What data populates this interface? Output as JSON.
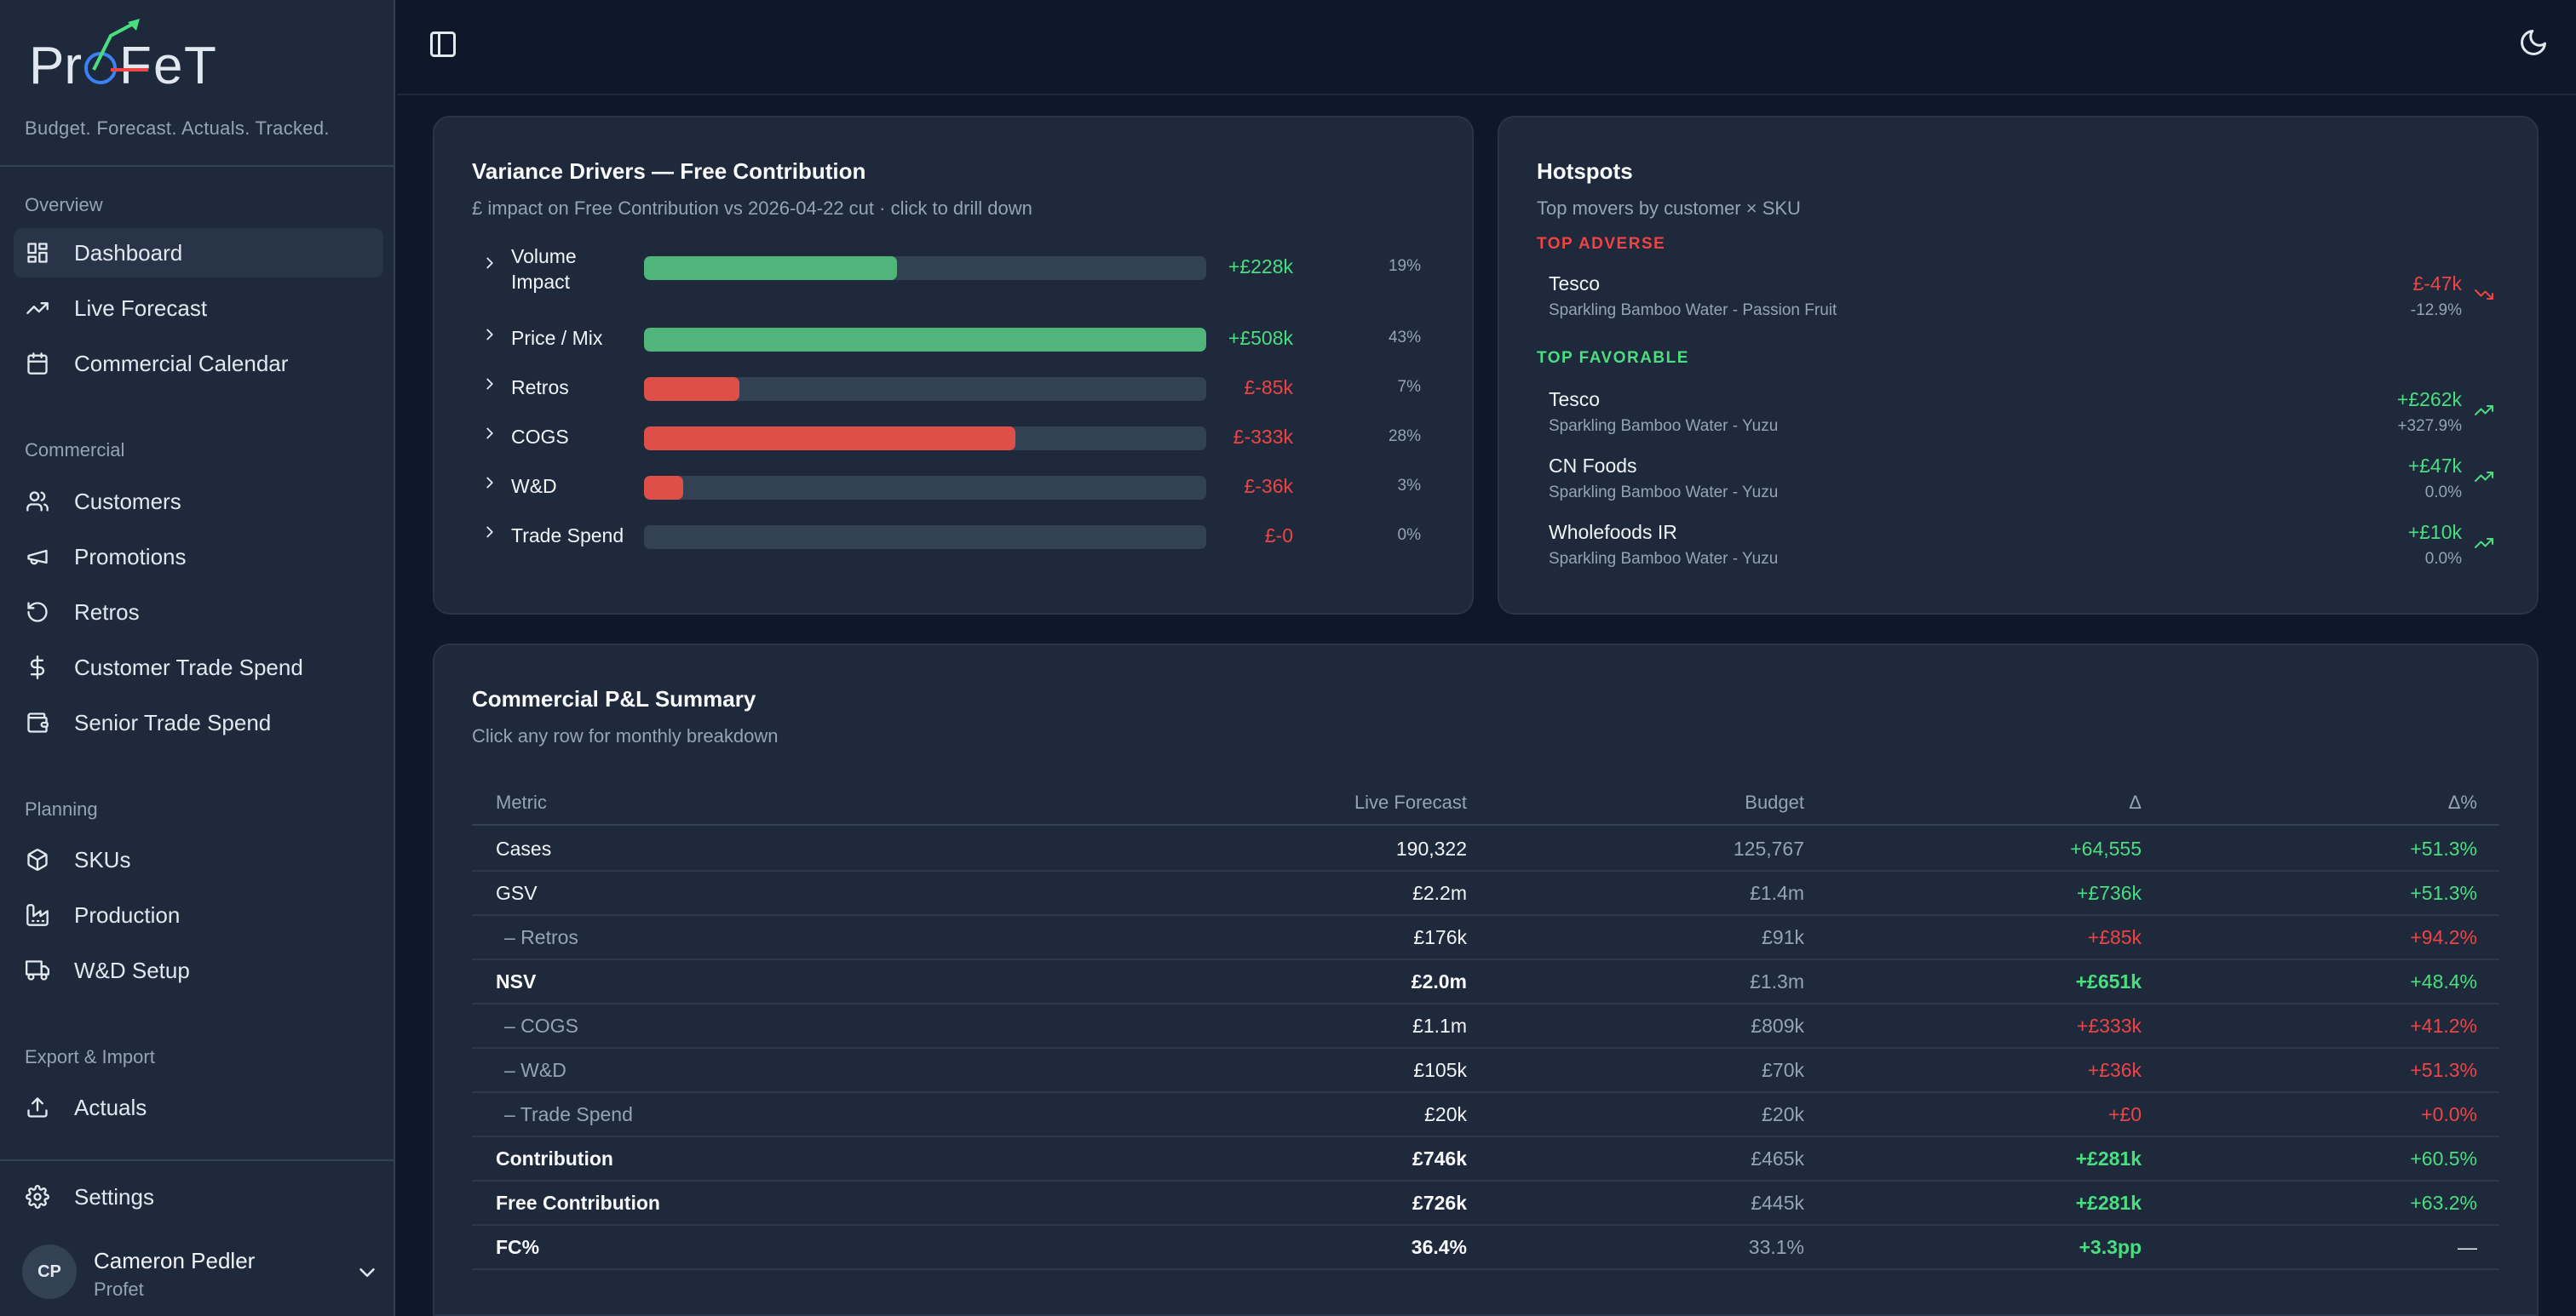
{
  "app": {
    "logo_text": "ProFeT",
    "tagline": "Budget. Forecast. Actuals. Tracked."
  },
  "sidebar": {
    "sections": [
      {
        "label": "Overview",
        "items": [
          {
            "label": "Dashboard",
            "icon": "dashboard-icon",
            "active": true
          },
          {
            "label": "Live Forecast",
            "icon": "trending-up-icon"
          },
          {
            "label": "Commercial Calendar",
            "icon": "calendar-icon"
          }
        ]
      },
      {
        "label": "Commercial",
        "items": [
          {
            "label": "Customers",
            "icon": "users-icon"
          },
          {
            "label": "Promotions",
            "icon": "megaphone-icon"
          },
          {
            "label": "Retros",
            "icon": "rotate-ccw-icon"
          },
          {
            "label": "Customer Trade Spend",
            "icon": "dollar-icon"
          },
          {
            "label": "Senior Trade Spend",
            "icon": "wallet-icon"
          }
        ]
      },
      {
        "label": "Planning",
        "items": [
          {
            "label": "SKUs",
            "icon": "package-icon"
          },
          {
            "label": "Production",
            "icon": "factory-icon"
          },
          {
            "label": "W&D Setup",
            "icon": "truck-icon"
          }
        ]
      },
      {
        "label": "Export & Import",
        "items": [
          {
            "label": "Actuals",
            "icon": "upload-icon"
          }
        ]
      }
    ],
    "settings_label": "Settings",
    "user": {
      "initials": "CP",
      "name": "Cameron Pedler",
      "org": "Profet"
    }
  },
  "variance": {
    "title": "Variance Drivers — Free Contribution",
    "subtitle": "£ impact on Free Contribution vs 2026-04-22 cut · click to drill down",
    "colors": {
      "positive": "#4ade80",
      "negative": "#ef4444",
      "bar_pos": "#4fb57a",
      "bar_neg": "#df4f4a"
    },
    "drivers": [
      {
        "label": "Volume Impact",
        "value": "+£228k",
        "pct": "19%",
        "share": 0.45,
        "sign": "pos"
      },
      {
        "label": "Price / Mix",
        "value": "+£508k",
        "pct": "43%",
        "share": 1.0,
        "sign": "pos"
      },
      {
        "label": "Retros",
        "value": "£-85k",
        "pct": "7%",
        "share": 0.17,
        "sign": "neg"
      },
      {
        "label": "COGS",
        "value": "£-333k",
        "pct": "28%",
        "share": 0.66,
        "sign": "neg"
      },
      {
        "label": "W&D",
        "value": "£-36k",
        "pct": "3%",
        "share": 0.07,
        "sign": "neg"
      },
      {
        "label": "Trade Spend",
        "value": "£-0",
        "pct": "0%",
        "share": 0,
        "sign": "neg"
      }
    ]
  },
  "hotspots": {
    "title": "Hotspots",
    "subtitle": "Top movers by customer × SKU",
    "adverse_label": "TOP ADVERSE",
    "favorable_label": "TOP FAVORABLE",
    "adverse": [
      {
        "customer": "Tesco",
        "sku": "Sparkling Bamboo Water - Passion Fruit",
        "value": "£-47k",
        "pct": "-12.9%"
      }
    ],
    "favorable": [
      {
        "customer": "Tesco",
        "sku": "Sparkling Bamboo Water - Yuzu",
        "value": "+£262k",
        "pct": "+327.9%"
      },
      {
        "customer": "CN Foods",
        "sku": "Sparkling Bamboo Water - Yuzu",
        "value": "+£47k",
        "pct": "0.0%"
      },
      {
        "customer": "Wholefoods IR",
        "sku": "Sparkling Bamboo Water - Yuzu",
        "value": "+£10k",
        "pct": "0.0%"
      }
    ]
  },
  "pnl": {
    "title": "Commercial P&L Summary",
    "subtitle": "Click any row for monthly breakdown",
    "columns": {
      "metric": "Metric",
      "live": "Live Forecast",
      "budget": "Budget",
      "delta": "Δ",
      "delta_pct": "Δ%"
    },
    "rows": [
      {
        "metric": "Cases",
        "live": "190,322",
        "budget": "125,767",
        "delta": "+64,555",
        "delta_pct": "+51.3%",
        "style": "normal",
        "tone": "pos",
        "tone_pct": "pos"
      },
      {
        "metric": "GSV",
        "live": "£2.2m",
        "budget": "£1.4m",
        "delta": "+£736k",
        "delta_pct": "+51.3%",
        "style": "normal",
        "tone": "pos",
        "tone_pct": "pos"
      },
      {
        "metric": "– Retros",
        "live": "£176k",
        "budget": "£91k",
        "delta": "+£85k",
        "delta_pct": "+94.2%",
        "style": "sub",
        "tone": "neg",
        "tone_pct": "neg"
      },
      {
        "metric": "NSV",
        "live": "£2.0m",
        "budget": "£1.3m",
        "delta": "+£651k",
        "delta_pct": "+48.4%",
        "style": "bold",
        "tone": "pos",
        "tone_pct": "pos"
      },
      {
        "metric": "– COGS",
        "live": "£1.1m",
        "budget": "£809k",
        "delta": "+£333k",
        "delta_pct": "+41.2%",
        "style": "sub",
        "tone": "neg",
        "tone_pct": "neg"
      },
      {
        "metric": "– W&D",
        "live": "£105k",
        "budget": "£70k",
        "delta": "+£36k",
        "delta_pct": "+51.3%",
        "style": "sub",
        "tone": "neg",
        "tone_pct": "neg"
      },
      {
        "metric": "– Trade Spend",
        "live": "£20k",
        "budget": "£20k",
        "delta": "+£0",
        "delta_pct": "+0.0%",
        "style": "sub",
        "tone": "neg",
        "tone_pct": "neg"
      },
      {
        "metric": "Contribution",
        "live": "£746k",
        "budget": "£465k",
        "delta": "+£281k",
        "delta_pct": "+60.5%",
        "style": "bold",
        "tone": "pos",
        "tone_pct": "pos"
      },
      {
        "metric": "Free Contribution",
        "live": "£726k",
        "budget": "£445k",
        "delta": "+£281k",
        "delta_pct": "+63.2%",
        "style": "bold",
        "tone": "pos",
        "tone_pct": "pos"
      },
      {
        "metric": "FC%",
        "live": "36.4%",
        "budget": "33.1%",
        "delta": "+3.3pp",
        "delta_pct": "—",
        "style": "bold",
        "tone": "pos",
        "tone_pct": "white"
      }
    ]
  }
}
